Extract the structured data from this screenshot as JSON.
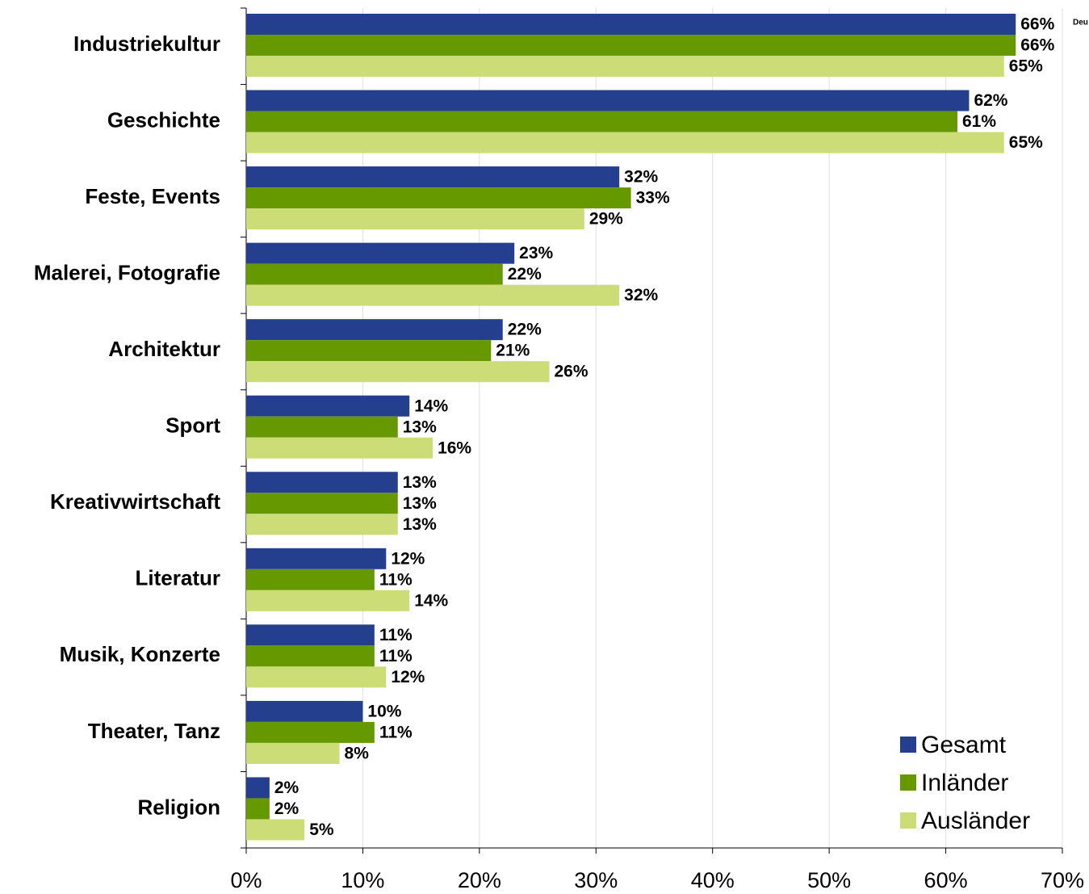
{
  "chart_data": {
    "type": "barh",
    "annotation": "Deu",
    "categories": [
      "Industriekultur",
      "Geschichte",
      "Feste, Events",
      "Malerei, Fotografie",
      "Architektur",
      "Sport",
      "Kreativwirtschaft",
      "Literatur",
      "Musik, Konzerte",
      "Theater, Tanz",
      "Religion"
    ],
    "series": [
      {
        "name": "Gesamt",
        "color": "#253f8f",
        "values": [
          66,
          62,
          32,
          23,
          22,
          14,
          13,
          12,
          11,
          10,
          2
        ],
        "value_labels": [
          "66%",
          "62%",
          "32%",
          "23%",
          "22%",
          "14%",
          "13%",
          "12%",
          "11%",
          "10%",
          "2%"
        ]
      },
      {
        "name": "Inländer",
        "color": "#669900",
        "values": [
          66,
          61,
          33,
          22,
          21,
          13,
          13,
          11,
          11,
          11,
          2
        ],
        "value_labels": [
          "66%",
          "61%",
          "33%",
          "22%",
          "21%",
          "13%",
          "13%",
          "11%",
          "11%",
          "11%",
          "2%"
        ]
      },
      {
        "name": "Ausländer",
        "color": "#ccdd77",
        "values": [
          65,
          65,
          29,
          32,
          26,
          16,
          13,
          14,
          12,
          8,
          5
        ],
        "value_labels": [
          "65%",
          "65%",
          "29%",
          "32%",
          "26%",
          "16%",
          "13%",
          "14%",
          "12%",
          "8%",
          "5%"
        ]
      }
    ],
    "xlim": [
      0,
      70
    ],
    "xticks": [
      {
        "value": 0,
        "label": "0%"
      },
      {
        "value": 10,
        "label": "10%"
      },
      {
        "value": 20,
        "label": "20%"
      },
      {
        "value": 30,
        "label": "30%"
      },
      {
        "value": 40,
        "label": "40%"
      },
      {
        "value": 50,
        "label": "50%"
      },
      {
        "value": 60,
        "label": "60%"
      },
      {
        "value": 70,
        "label": "70%"
      }
    ],
    "grid": true,
    "legend": "lower right"
  }
}
